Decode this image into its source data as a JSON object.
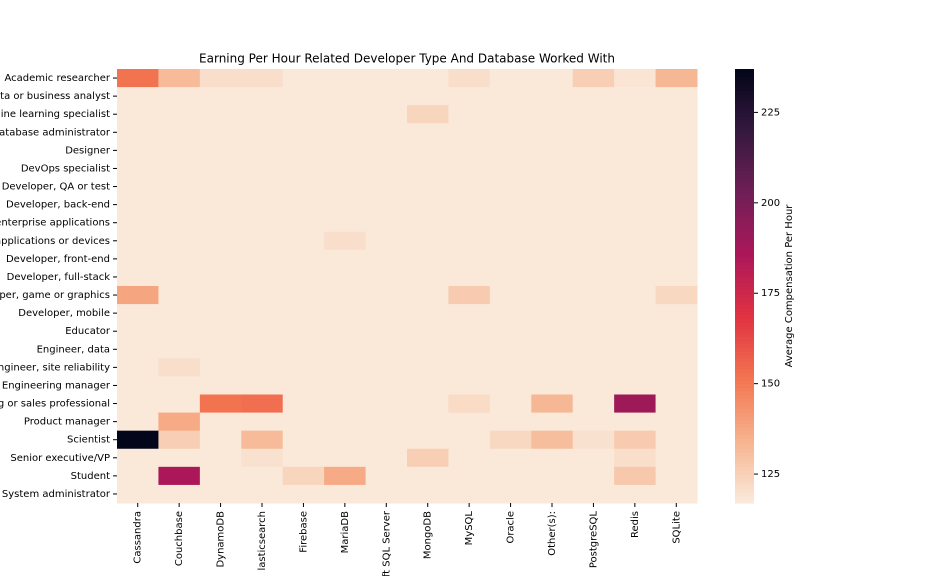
{
  "chart_data": {
    "type": "heatmap",
    "title": "Earning Per Hour Related Developer Type And Database Worked With",
    "colorbar_label": "Average Compensation Per Hour",
    "rows": [
      "Academic researcher",
      "ta or business analyst",
      "ine learning specialist",
      "atabase administrator",
      "Designer",
      "DevOps specialist",
      "Developer, QA or test",
      "Developer, back-end",
      "enterprise applications",
      "applications or devices",
      "Developer, front-end",
      "Developer, full-stack",
      "per, game or graphics",
      "Developer, mobile",
      "Educator",
      "Engineer, data",
      "ngineer, site reliability",
      "Engineering manager",
      "g or sales professional",
      "Product manager",
      "Scientist",
      "Senior executive/VP",
      "Student",
      "System administrator"
    ],
    "categories": [
      "Cassandra",
      "Couchbase",
      "DynamoDB",
      "lasticsearch",
      "Firebase",
      "MariaDB",
      "ft SQL Server",
      "MongoDB",
      "MySQL",
      "Oracle",
      "Other(s):",
      "PostgreSQL",
      "Redis",
      "SQLite"
    ],
    "values": [
      [
        152,
        132,
        121,
        121,
        118,
        118,
        118,
        118,
        121,
        118,
        118,
        126,
        119,
        133
      ],
      [
        118,
        118,
        118,
        118,
        118,
        118,
        118,
        118,
        118,
        118,
        118,
        118,
        118,
        118
      ],
      [
        118,
        118,
        118,
        118,
        118,
        118,
        118,
        124,
        118,
        118,
        118,
        118,
        118,
        118
      ],
      [
        118,
        118,
        118,
        118,
        118,
        118,
        118,
        118,
        118,
        118,
        118,
        118,
        118,
        118
      ],
      [
        118,
        118,
        118,
        118,
        118,
        118,
        118,
        118,
        118,
        118,
        118,
        118,
        118,
        118
      ],
      [
        118,
        118,
        118,
        118,
        118,
        118,
        118,
        118,
        118,
        118,
        118,
        118,
        118,
        118
      ],
      [
        118,
        118,
        118,
        118,
        118,
        118,
        118,
        118,
        118,
        118,
        118,
        118,
        118,
        118
      ],
      [
        118,
        118,
        118,
        118,
        118,
        118,
        118,
        118,
        118,
        118,
        118,
        118,
        118,
        118
      ],
      [
        118,
        118,
        118,
        118,
        118,
        118,
        118,
        118,
        118,
        118,
        118,
        118,
        118,
        118
      ],
      [
        118,
        118,
        118,
        118,
        118,
        121,
        118,
        118,
        118,
        118,
        118,
        118,
        118,
        118
      ],
      [
        118,
        118,
        118,
        118,
        118,
        118,
        118,
        118,
        118,
        118,
        118,
        118,
        118,
        118
      ],
      [
        118,
        118,
        118,
        118,
        118,
        118,
        118,
        118,
        118,
        118,
        118,
        118,
        118,
        118
      ],
      [
        138,
        118,
        118,
        118,
        118,
        118,
        118,
        118,
        127,
        118,
        118,
        118,
        118,
        123
      ],
      [
        118,
        118,
        118,
        118,
        118,
        118,
        118,
        118,
        118,
        118,
        118,
        118,
        118,
        118
      ],
      [
        118,
        118,
        118,
        118,
        118,
        118,
        118,
        118,
        118,
        118,
        118,
        118,
        118,
        118
      ],
      [
        118,
        118,
        118,
        118,
        118,
        118,
        118,
        118,
        118,
        118,
        118,
        118,
        118,
        118
      ],
      [
        118,
        121,
        118,
        118,
        118,
        118,
        118,
        118,
        118,
        118,
        118,
        118,
        118,
        118
      ],
      [
        118,
        118,
        118,
        118,
        118,
        118,
        118,
        118,
        118,
        118,
        118,
        118,
        118,
        118
      ],
      [
        118,
        118,
        152,
        153,
        118,
        118,
        118,
        118,
        122,
        118,
        133,
        118,
        190,
        118
      ],
      [
        118,
        137,
        118,
        118,
        118,
        118,
        118,
        118,
        118,
        118,
        118,
        118,
        118,
        118
      ],
      [
        237,
        126,
        118,
        132,
        118,
        118,
        118,
        118,
        118,
        123,
        131,
        120,
        127,
        118
      ],
      [
        118,
        118,
        118,
        120,
        118,
        118,
        118,
        126,
        118,
        118,
        118,
        118,
        121,
        118
      ],
      [
        118,
        186,
        118,
        118,
        124,
        137,
        118,
        118,
        118,
        118,
        118,
        118,
        128,
        118
      ],
      [
        118,
        118,
        118,
        118,
        118,
        118,
        118,
        118,
        118,
        118,
        118,
        118,
        118,
        118
      ]
    ],
    "clim": [
      117,
      237
    ],
    "cticks": [
      125,
      150,
      175,
      200,
      225
    ],
    "colormap": [
      "#faebdd",
      "#f6b48f",
      "#f37651",
      "#e13342",
      "#ad1759",
      "#701f57",
      "#35193e",
      "#03051a"
    ]
  }
}
